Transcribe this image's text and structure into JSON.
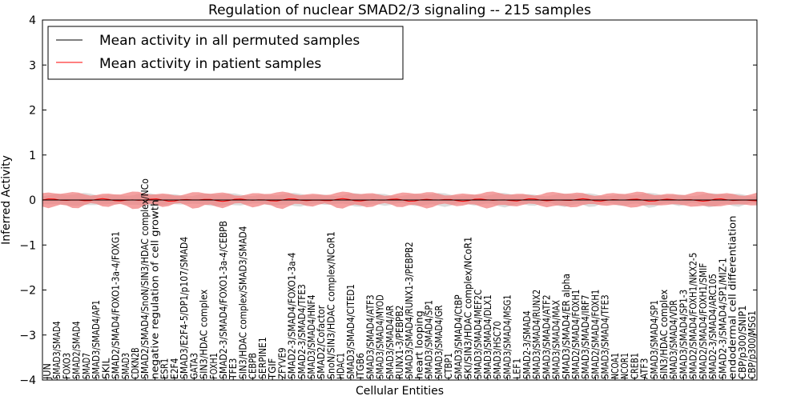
{
  "chart_data": {
    "type": "line",
    "title": "Regulation of nuclear SMAD2/3 signaling -- 215 samples",
    "xlabel": "Cellular Entities",
    "ylabel": "Inferred Activity",
    "ylim": [
      -4,
      4
    ],
    "yticks": [
      -4,
      -3,
      -2,
      -1,
      0,
      1,
      2,
      3,
      4
    ],
    "grid": false,
    "legend_position": "top-left",
    "colors": {
      "permuted": "#000000",
      "patient": "#ff0000",
      "patient_band": "#f08080",
      "permuted_band": "#c0c0c0"
    },
    "series": [
      {
        "name": "Mean activity in all permuted samples",
        "color": "#000000",
        "constant_value": 0.0,
        "band": [
          -0.08,
          0.08
        ]
      },
      {
        "name": "Mean activity in patient samples",
        "color": "#ff0000",
        "approx_value": 0.0,
        "band": [
          -0.15,
          0.15
        ]
      }
    ],
    "categories": [
      "JUN",
      "SMAD3/SMAD4",
      "FOXO3",
      "SMAD2/SMAD4",
      "SMAD7",
      "SMAD3/SMAD4/AP1",
      "SKIL",
      "SMAD2/SMAD4/FOXO1-3a-4/FOXG1",
      "SMAD3",
      "CDKN2B",
      "SMAD2/SMAD4/SnoN/SIN3/HDAC complex/NCo",
      "negative regulation of cell growth",
      "ESR1",
      "E2F4",
      "SMAD3/E2F4-5/DP1/p107/SMAD4",
      "GATA3",
      "SIN3/HDAC complex",
      "FOXH1",
      "SMAD2-3/SMAD4/FOXO1-3a-4/CEBPB",
      "TFE3",
      "SIN3/HDAC complex/SMAD3/SMAD4",
      "CEBPB",
      "SERPINE1",
      "TGIF",
      "ZFYVE9",
      "SMAD2-3/SMAD4/FOXO1-3a-4",
      "SMAD2-3/SMAD4/TFE3",
      "SMAD3/SMAD4/HNF4",
      "SMAD2/Cofactor",
      "SnoN/SIN3/HDAC complex/NCoR1",
      "HDAC1",
      "SMAD3/SMAD4/CITED1",
      "ITGB6",
      "SMAD3/SMAD4/ATF3",
      "SMAD3/SMAD4/MYOD",
      "SMAD3/SMAD4/AR",
      "RUNX1-3/PEBPB2",
      "SMAD3/SMAD4/RUNX1-3/PEBPB2",
      "heart looping",
      "SMAD3/SMAD4/SP1",
      "SMAD3/SMAD4/GR",
      "CTBP1",
      "SMAD3/SMAD4/CtBP",
      "SKI/SIN3/HDAC complex/NCoR1",
      "SMAD3/SMAD4/MEF2C",
      "SMAD3/SMAD4/DLX1",
      "SMAD3/HSC70",
      "SMAD3/SMAD4/MSG1",
      "LEF1",
      "SMAD2-3/SMAD4",
      "SMAD3/SMAD4/RUNX2",
      "SMAD3/SMAD4/ATF2",
      "SMAD3/SMAD4/MAX",
      "SMAD3/SMAD4/ER alpha",
      "SMAD2/SMAD4/FOXH1",
      "SMAD3/SMAD4/IRF7",
      "SMAD2/SMAD4/FOXH1",
      "SMAD3/SMAD4/TFE3",
      "NCOA1",
      "NCOR1",
      "CREB1",
      "ATF3",
      "SMAD3/SMAD4/SP1",
      "SIN3/HDAC complex",
      "SMAD3/SMAD4/VDR",
      "SMAD3/SMAD4/SP1-3",
      "SMAD2/SMAD4/FOXH1/NKX2-5",
      "SMAD2/SMAD4/FOXH1/SMIF",
      "SMAD2-3/SMAD4/ARC105",
      "SMAD2-3/SMAD4/SP1/MIZ-1",
      "endodermal cell differentiation",
      "CBP/p300/SNIP1",
      "CBP/p300/MSG1"
    ]
  },
  "legend": {
    "items": [
      {
        "label": "Mean activity in all permuted samples",
        "color": "#000000"
      },
      {
        "label": "Mean activity in patient samples",
        "color": "#ff0000"
      }
    ]
  }
}
